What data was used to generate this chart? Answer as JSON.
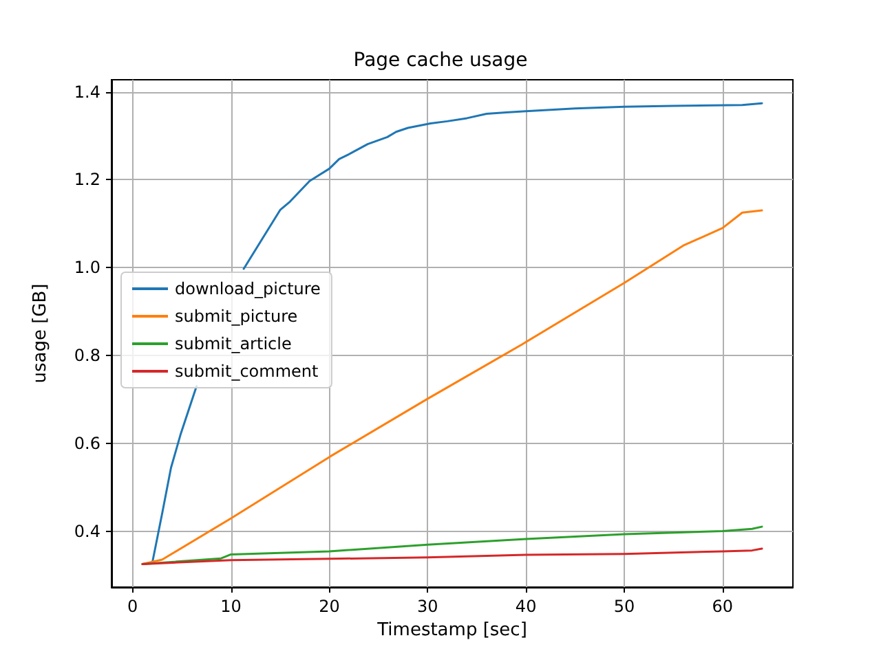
{
  "chart_data": {
    "type": "line",
    "title": "Page cache usage",
    "xlabel": "Timestamp [sec]",
    "ylabel": "usage [GB]",
    "xlim": [
      -2.15,
      67.15
    ],
    "xticks": [
      0,
      10,
      20,
      30,
      40,
      50,
      60
    ],
    "ylim": [
      0.2725,
      1.4275
    ],
    "yticks": [
      0.4,
      0.6,
      0.8,
      {
        "value": 1,
        "label": "1.0"
      },
      1.2,
      1.4
    ],
    "grid": true,
    "legend": "left",
    "marker": "none",
    "line_style": "solid",
    "series": [
      {
        "name": "download_picture",
        "color": "#1f77b4",
        "x": [
          1,
          2,
          3,
          3.9,
          4.9,
          6.5,
          8,
          9,
          10,
          11.3,
          13.2,
          15,
          16,
          18,
          20,
          21,
          22,
          23.9,
          25.9,
          26.8,
          28,
          30.3,
          32,
          34,
          36,
          38,
          40,
          45,
          50,
          55,
          62,
          64
        ],
        "values": [
          0.325,
          0.328,
          0.44,
          0.544,
          0.622,
          0.73,
          null,
          null,
          null,
          0.997,
          1.066,
          1.131,
          1.15,
          1.197,
          1.225,
          1.247,
          1.258,
          1.281,
          1.297,
          1.309,
          1.318,
          1.328,
          1.333,
          1.34,
          1.35,
          1.353,
          1.356,
          1.362,
          1.366,
          1.368,
          1.37,
          1.374
        ]
      },
      {
        "name": "submit_picture",
        "color": "#ff7f0e",
        "x": [
          1,
          3,
          10,
          20.1,
          29.9,
          39.6,
          50,
          56,
          60,
          62,
          64
        ],
        "values": [
          0.325,
          0.335,
          0.429,
          0.57,
          0.7,
          0.825,
          0.965,
          1.05,
          1.09,
          1.125,
          1.13
        ]
      },
      {
        "name": "submit_article",
        "color": "#2ca02c",
        "x": [
          1,
          9,
          10,
          20,
          30,
          40,
          50,
          60,
          63,
          64
        ],
        "values": [
          0.325,
          0.338,
          0.347,
          0.354,
          0.369,
          0.382,
          0.393,
          0.4,
          0.405,
          0.41
        ]
      },
      {
        "name": "submit_comment",
        "color": "#d62728",
        "x": [
          1,
          10,
          20,
          30,
          40,
          50,
          60,
          63,
          64
        ],
        "values": [
          0.325,
          0.334,
          0.337,
          0.34,
          0.346,
          0.348,
          0.354,
          0.356,
          0.36
        ]
      }
    ]
  }
}
